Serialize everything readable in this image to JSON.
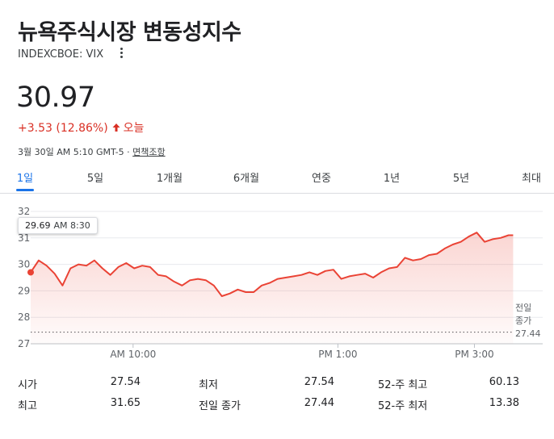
{
  "header": {
    "title": "뉴욕주식시장 변동성지수",
    "ticker": "INDEXCBOE: VIX"
  },
  "quote": {
    "price": "30.97",
    "change": "+3.53 (12.86%)",
    "period": "오늘",
    "timestamp": "3월 30일 AM 5:10 GMT-5 · ",
    "disclaimer": "면책조항",
    "down_color": "#d93025"
  },
  "tabs": [
    {
      "label": "1일",
      "active": true
    },
    {
      "label": "5일"
    },
    {
      "label": "1개월"
    },
    {
      "label": "6개월"
    },
    {
      "label": "연중"
    },
    {
      "label": "1년"
    },
    {
      "label": "5년"
    },
    {
      "label": "최대"
    }
  ],
  "tooltip": {
    "value": "29.69",
    "time": "AM 8:30"
  },
  "prev_close": {
    "label": "전일 종가",
    "value": "27.44"
  },
  "chart_data": {
    "type": "area",
    "series_color": "#ea4335",
    "y_ticks": [
      "32",
      "31",
      "30",
      "29",
      "28",
      "27"
    ],
    "ylim": [
      27,
      32.1
    ],
    "x_ticks": [
      {
        "label": "AM 10:00",
        "t": 600
      },
      {
        "label": "PM 1:00",
        "t": 780
      },
      {
        "label": "PM 3:00",
        "t": 900
      }
    ],
    "xlim": [
      510,
      960
    ],
    "previous_close": 27.44,
    "x": [
      510,
      517,
      524,
      531,
      538,
      545,
      552,
      559,
      566,
      573,
      580,
      587,
      594,
      601,
      608,
      615,
      622,
      629,
      636,
      643,
      650,
      657,
      664,
      671,
      678,
      685,
      692,
      699,
      706,
      713,
      720,
      727,
      734,
      741,
      748,
      755,
      762,
      769,
      776,
      783,
      790,
      797,
      804,
      811,
      818,
      825,
      832,
      839,
      846,
      853,
      860,
      867,
      874,
      881,
      888,
      895,
      902,
      909,
      916,
      923,
      930,
      934
    ],
    "y": [
      29.7,
      30.15,
      29.95,
      29.65,
      29.2,
      29.85,
      30.0,
      29.95,
      30.15,
      29.85,
      29.6,
      29.9,
      30.05,
      29.85,
      29.95,
      29.9,
      29.6,
      29.55,
      29.35,
      29.2,
      29.4,
      29.45,
      29.4,
      29.2,
      28.8,
      28.9,
      29.05,
      28.95,
      28.95,
      29.2,
      29.3,
      29.45,
      29.5,
      29.55,
      29.6,
      29.7,
      29.6,
      29.75,
      29.8,
      29.45,
      29.55,
      29.6,
      29.65,
      29.5,
      29.7,
      29.85,
      29.9,
      30.25,
      30.15,
      30.2,
      30.35,
      30.4,
      30.6,
      30.75,
      30.85,
      31.05,
      31.2,
      30.85,
      30.95,
      31.0,
      31.1,
      31.1
    ]
  },
  "stats": {
    "rows": [
      [
        {
          "label": "시가",
          "value": "27.54"
        },
        {
          "label": "최저",
          "value": "27.54"
        },
        {
          "label": "52-주 최고",
          "value": "60.13"
        }
      ],
      [
        {
          "label": "최고",
          "value": "31.65"
        },
        {
          "label": "전일 종가",
          "value": "27.44"
        },
        {
          "label": "52-주 최저",
          "value": "13.38"
        }
      ]
    ]
  }
}
